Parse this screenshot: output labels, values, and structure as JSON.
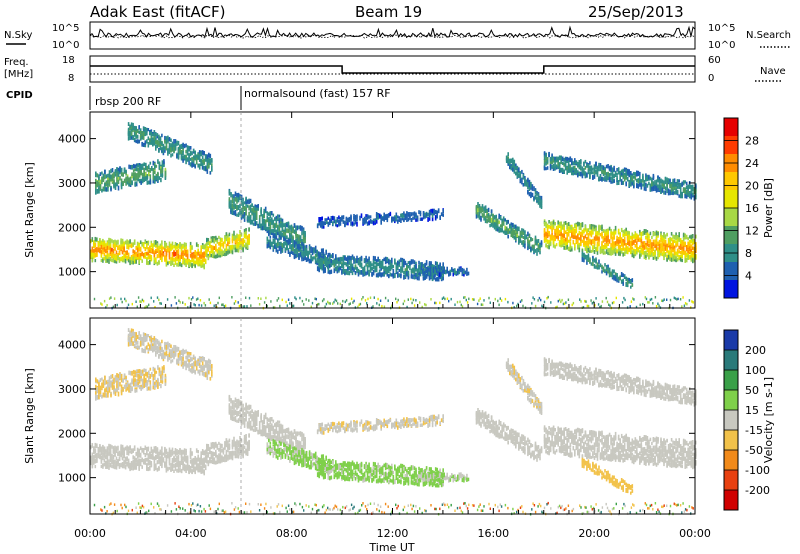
{
  "header": {
    "title": "Adak East (fitACF)",
    "beam": "Beam 19",
    "date": "25/Sep/2013"
  },
  "top_panel": {
    "left_label": "N.Sky",
    "right_label": "N.Search",
    "left_ticks": [
      "10^5",
      "10^0"
    ],
    "right_ticks": [
      "10^5",
      "10^0"
    ]
  },
  "freq_panel": {
    "left_label_1": "Freq.",
    "left_label_2": "[MHz]",
    "left_ticks": [
      "18",
      "8"
    ],
    "right_label": "Nave",
    "right_ticks": [
      "60",
      "0"
    ],
    "freq_steps": [
      {
        "start_hour": 0,
        "end_hour": 10,
        "level": "high"
      },
      {
        "start_hour": 10,
        "end_hour": 18,
        "level": "low"
      },
      {
        "start_hour": 18,
        "end_hour": 24,
        "level": "high"
      }
    ]
  },
  "cpid": {
    "label": "CPID",
    "programs": [
      {
        "name": "rbsp 200 RF",
        "start_hour": 0
      },
      {
        "name": "normalsound (fast) 157 RF",
        "start_hour": 6
      }
    ]
  },
  "x_axis": {
    "label": "Time UT",
    "ticks": [
      "00:00",
      "04:00",
      "08:00",
      "12:00",
      "16:00",
      "20:00",
      "00:00"
    ],
    "range_hours": [
      0,
      24
    ]
  },
  "power_panel": {
    "ylabel": "Slant Range [km]",
    "yticks": [
      "1000",
      "2000",
      "3000",
      "4000"
    ],
    "colorbar_label": "Power [dB]",
    "colorbar_ticks": [
      "28",
      "24",
      "20",
      "16",
      "12",
      "8",
      "4"
    ],
    "colors": [
      "#e60000",
      "#ff3b00",
      "#ff8c00",
      "#ffc800",
      "#e6e600",
      "#a8d845",
      "#4f9e61",
      "#2f8f88",
      "#1f60b0",
      "#0014e0"
    ]
  },
  "velocity_panel": {
    "ylabel": "Slant Range [km]",
    "yticks": [
      "1000",
      "2000",
      "3000",
      "4000"
    ],
    "colorbar_label": "Velocity [m s-1]",
    "colorbar_ticks": [
      "200",
      "100",
      "50",
      "15",
      "-15",
      "-50",
      "-100",
      "-200"
    ],
    "colors": [
      "#1a3aa8",
      "#2a7a7a",
      "#3aa048",
      "#7fd04a",
      "#c8c8c0",
      "#f2c24a",
      "#f28a1a",
      "#e84010",
      "#d00000"
    ]
  },
  "chart_data": {
    "type": "heatmap",
    "title": "Adak East (fitACF)",
    "xlabel": "Time UT",
    "ylabel": "Slant Range [km]",
    "xlim_hours": [
      0,
      24
    ],
    "ylim_km": [
      180,
      4600
    ],
    "power_range_db": [
      0,
      32
    ],
    "velocity_range_ms": [
      -250,
      250
    ],
    "scatter_bands": [
      {
        "t_start": 0.0,
        "t_end": 4.6,
        "range_start_km": 1500,
        "range_end_km": 1350,
        "width_km": 500,
        "power_db": 26,
        "velocity_ms": 0
      },
      {
        "t_start": 4.6,
        "t_end": 6.3,
        "range_start_km": 1500,
        "range_end_km": 1750,
        "width_km": 450,
        "power_db": 22,
        "velocity_ms": 5
      },
      {
        "t_start": 0.2,
        "t_end": 3.0,
        "range_start_km": 3000,
        "range_end_km": 3300,
        "width_km": 450,
        "power_db": 12,
        "velocity_ms": -30
      },
      {
        "t_start": 1.5,
        "t_end": 4.8,
        "range_start_km": 4200,
        "range_end_km": 3400,
        "width_km": 400,
        "power_db": 10,
        "velocity_ms": -20
      },
      {
        "t_start": 5.5,
        "t_end": 8.5,
        "range_start_km": 2600,
        "range_end_km": 1700,
        "width_km": 500,
        "power_db": 10,
        "velocity_ms": 0
      },
      {
        "t_start": 7.0,
        "t_end": 9.5,
        "range_start_km": 1700,
        "range_end_km": 1250,
        "width_km": 350,
        "power_db": 8,
        "velocity_ms": 40
      },
      {
        "t_start": 9.0,
        "t_end": 14.0,
        "range_start_km": 1200,
        "range_end_km": 1000,
        "width_km": 400,
        "power_db": 8,
        "velocity_ms": 45
      },
      {
        "t_start": 13.0,
        "t_end": 15.0,
        "range_start_km": 1000,
        "range_end_km": 1000,
        "width_km": 150,
        "power_db": 6,
        "velocity_ms": 30
      },
      {
        "t_start": 15.3,
        "t_end": 17.9,
        "range_start_km": 2400,
        "range_end_km": 1500,
        "width_km": 350,
        "power_db": 12,
        "velocity_ms": 0
      },
      {
        "t_start": 16.5,
        "t_end": 17.9,
        "range_start_km": 3600,
        "range_end_km": 2500,
        "width_km": 300,
        "power_db": 8,
        "velocity_ms": -20
      },
      {
        "t_start": 18.0,
        "t_end": 24.0,
        "range_start_km": 1850,
        "range_end_km": 1500,
        "width_km": 600,
        "power_db": 25,
        "velocity_ms": 0
      },
      {
        "t_start": 18.0,
        "t_end": 24.0,
        "range_start_km": 3500,
        "range_end_km": 2800,
        "width_km": 350,
        "power_db": 9,
        "velocity_ms": -10
      },
      {
        "t_start": 19.5,
        "t_end": 21.5,
        "range_start_km": 1350,
        "range_end_km": 700,
        "width_km": 200,
        "power_db": 10,
        "velocity_ms": -60
      },
      {
        "t_start": 9.0,
        "t_end": 14.0,
        "range_start_km": 2100,
        "range_end_km": 2300,
        "width_km": 200,
        "power_db": 5,
        "velocity_ms": -20
      }
    ]
  }
}
